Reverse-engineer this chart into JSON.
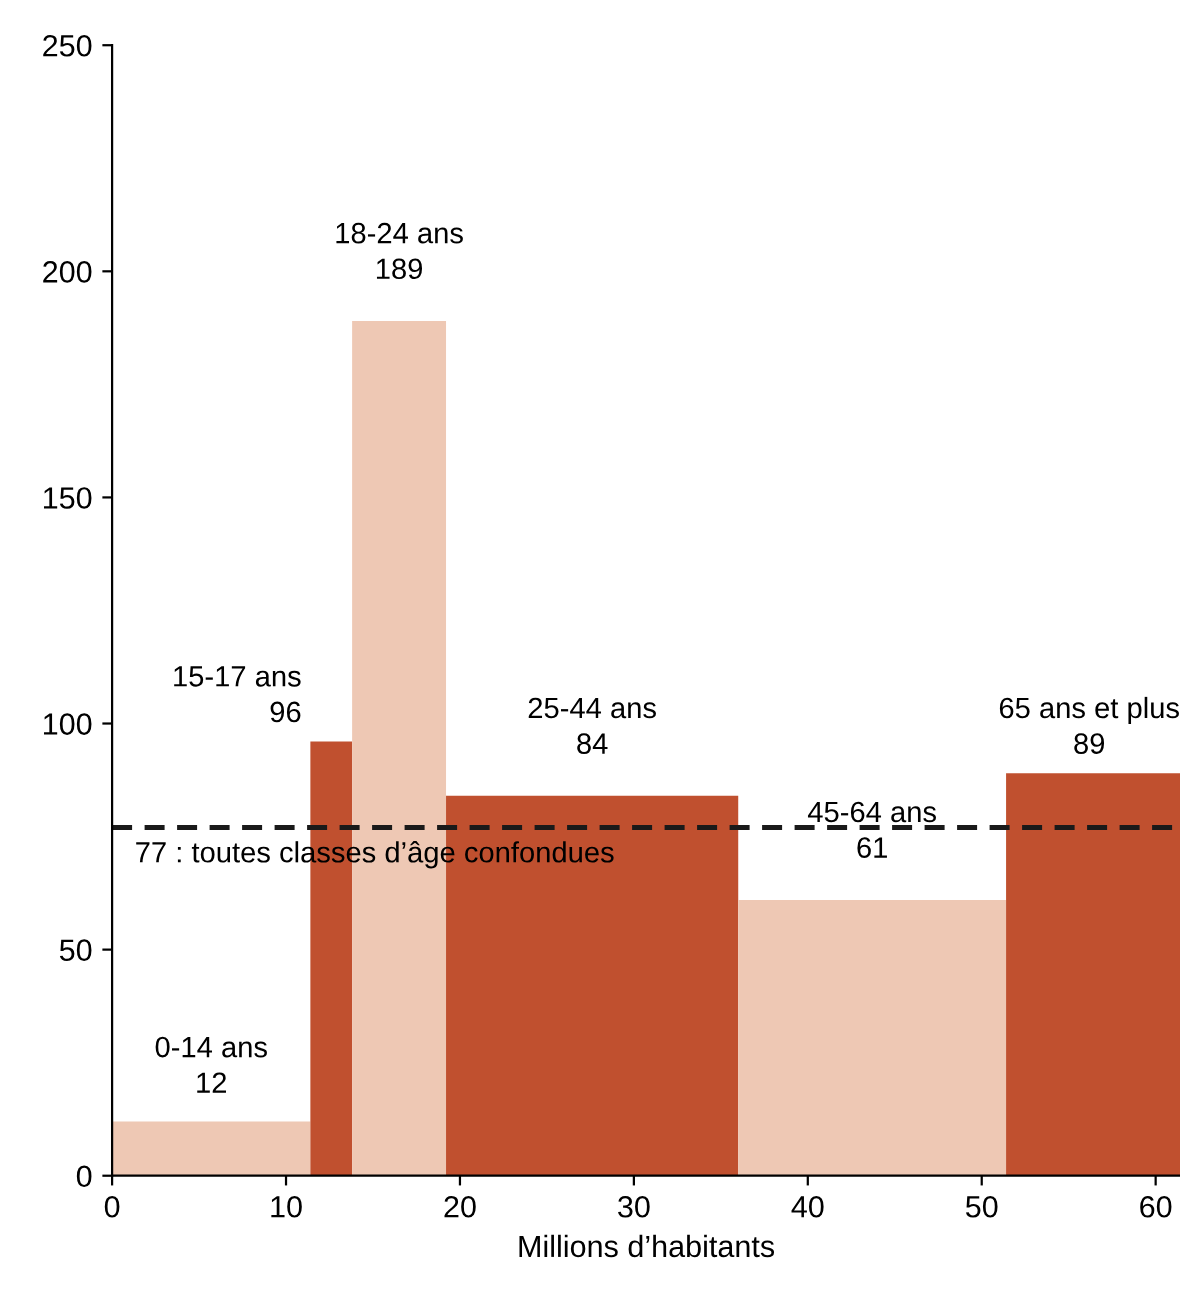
{
  "chart_data": {
    "type": "histogram",
    "xlabel": "Millions d’habitants",
    "categories": [
      "0-14 ans",
      "15-17 ans",
      "18-24 ans",
      "25-44 ans",
      "45-64 ans",
      "65 ans et plus"
    ],
    "bins": [
      0,
      11.4,
      13.8,
      19.2,
      36.0,
      51.4,
      61.4
    ],
    "values": [
      12,
      96,
      189,
      84,
      61,
      89
    ],
    "colors": [
      "#eec8b4",
      "#c0502f",
      "#eec8b4",
      "#c0502f",
      "#eec8b4",
      "#c0502f"
    ],
    "data_labels": true,
    "xlim": [
      0,
      61.4
    ],
    "xticks": [
      0,
      10,
      20,
      30,
      40,
      50,
      60
    ],
    "ylim": [
      0,
      250
    ],
    "yticks": [
      0,
      50,
      100,
      150,
      200,
      250
    ],
    "grid": false,
    "ref_lines": [
      {
        "axis": "y",
        "value": 77,
        "label": "77 : toutes classes d’âge confondues",
        "color": "#1a1a1a",
        "line_style": "dashed"
      }
    ]
  }
}
